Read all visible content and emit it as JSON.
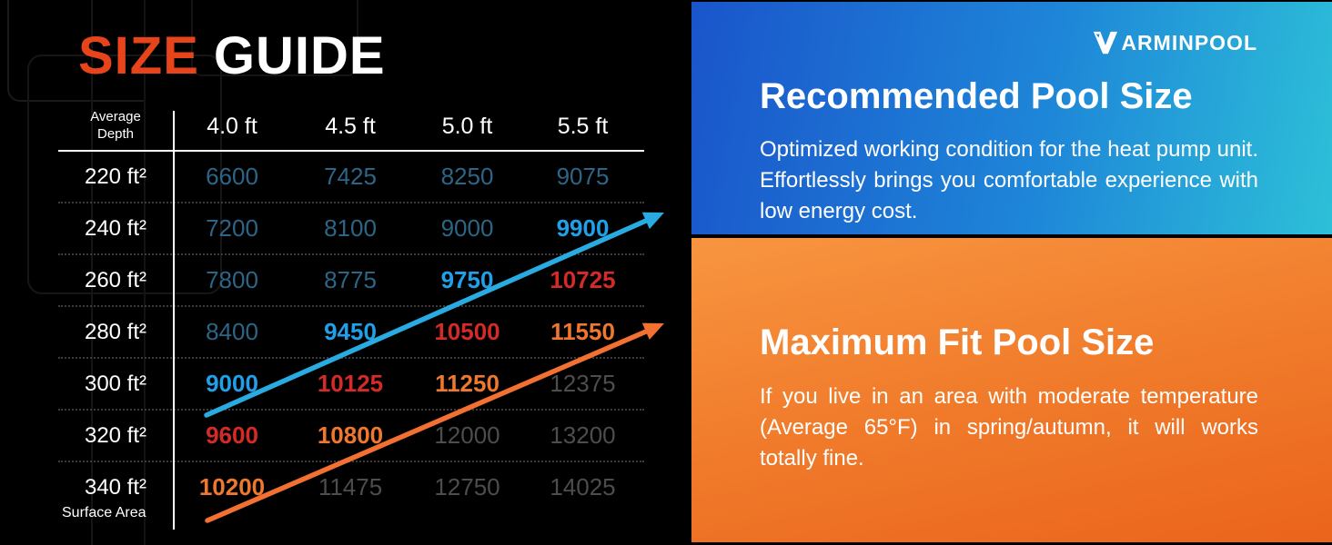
{
  "title": {
    "highlight": "SIZE",
    "rest": "GUIDE"
  },
  "table": {
    "corner_header": "Average Depth",
    "columns": [
      "4.0 ft",
      "4.5 ft",
      "5.0 ft",
      "5.5 ft"
    ],
    "rows": [
      {
        "label": "220 ft²",
        "values": [
          "6600",
          "7425",
          "8250",
          "9075"
        ],
        "styles": [
          "muted",
          "muted",
          "muted",
          "muted"
        ]
      },
      {
        "label": "240 ft²",
        "values": [
          "7200",
          "8100",
          "9000",
          "9900"
        ],
        "styles": [
          "muted",
          "muted",
          "muted",
          "blue"
        ]
      },
      {
        "label": "260 ft²",
        "values": [
          "7800",
          "8775",
          "9750",
          "10725"
        ],
        "styles": [
          "muted",
          "muted",
          "blue",
          "red"
        ]
      },
      {
        "label": "280 ft²",
        "values": [
          "8400",
          "9450",
          "10500",
          "11550"
        ],
        "styles": [
          "muted",
          "blue",
          "red",
          "orange"
        ]
      },
      {
        "label": "300 ft²",
        "values": [
          "9000",
          "10125",
          "11250",
          "12375"
        ],
        "styles": [
          "blue",
          "red",
          "orange",
          "gray"
        ]
      },
      {
        "label": "320 ft²",
        "values": [
          "9600",
          "10800",
          "12000",
          "13200"
        ],
        "styles": [
          "red",
          "orange",
          "gray",
          "gray"
        ]
      },
      {
        "label": "340 ft²",
        "values": [
          "10200",
          "11475",
          "12750",
          "14025"
        ],
        "styles": [
          "orange",
          "gray",
          "gray",
          "gray"
        ]
      }
    ],
    "footer_label": "Surface Area",
    "value_colors": {
      "muted": "#2d6587",
      "blue": "#21a0ea",
      "red": "#d42a28",
      "orange": "#f0772e",
      "gray": "#4d4d4d"
    }
  },
  "arrows": {
    "recommended_color": "#29abe2",
    "maximum_color": "#f27032"
  },
  "panels": {
    "recommended": {
      "brand_text": "ARMINPOOL",
      "heading": "Recommended Pool Size",
      "body": "Optimized working condition for the heat pump unit. Effortlessly brings you comfortable experience with low energy cost.",
      "accent": "#1a55cb"
    },
    "maximum": {
      "heading": "Maximum Fit Pool Size",
      "body": "If you live in an area with moderate temperature (Average 65°F) in spring/autumn, it will works totally fine.",
      "accent": "#f07b2b"
    }
  },
  "chart_data": {
    "type": "table",
    "title": "SIZE GUIDE",
    "row_axis_label": "Surface Area",
    "column_axis_label": "Average Depth",
    "columns": [
      "4.0 ft",
      "4.5 ft",
      "5.0 ft",
      "5.5 ft"
    ],
    "rows": [
      "220 ft²",
      "240 ft²",
      "260 ft²",
      "280 ft²",
      "300 ft²",
      "320 ft²",
      "340 ft²"
    ],
    "values": [
      [
        6600,
        7425,
        8250,
        9075
      ],
      [
        7200,
        8100,
        9000,
        9900
      ],
      [
        7800,
        8775,
        9750,
        10725
      ],
      [
        8400,
        9450,
        10500,
        11550
      ],
      [
        9000,
        10125,
        11250,
        12375
      ],
      [
        9600,
        10800,
        12000,
        13200
      ],
      [
        10200,
        11475,
        12750,
        14025
      ]
    ],
    "highlight_styles": [
      [
        "muted",
        "muted",
        "muted",
        "muted"
      ],
      [
        "muted",
        "muted",
        "muted",
        "blue"
      ],
      [
        "muted",
        "muted",
        "blue",
        "red"
      ],
      [
        "muted",
        "blue",
        "red",
        "orange"
      ],
      [
        "blue",
        "red",
        "orange",
        "gray"
      ],
      [
        "red",
        "orange",
        "gray",
        "gray"
      ],
      [
        "orange",
        "gray",
        "gray",
        "gray"
      ]
    ],
    "annotations": [
      {
        "name": "recommended-trend-arrow",
        "color": "#29abe2",
        "from_cell": [
          "300 ft²",
          "4.0 ft"
        ],
        "to_cell": [
          "240 ft²",
          "5.5 ft"
        ]
      },
      {
        "name": "maximum-trend-arrow",
        "color": "#f27032",
        "from_cell": [
          "340 ft²",
          "4.0 ft"
        ],
        "to_cell": [
          "280 ft²",
          "5.5 ft"
        ]
      }
    ]
  }
}
